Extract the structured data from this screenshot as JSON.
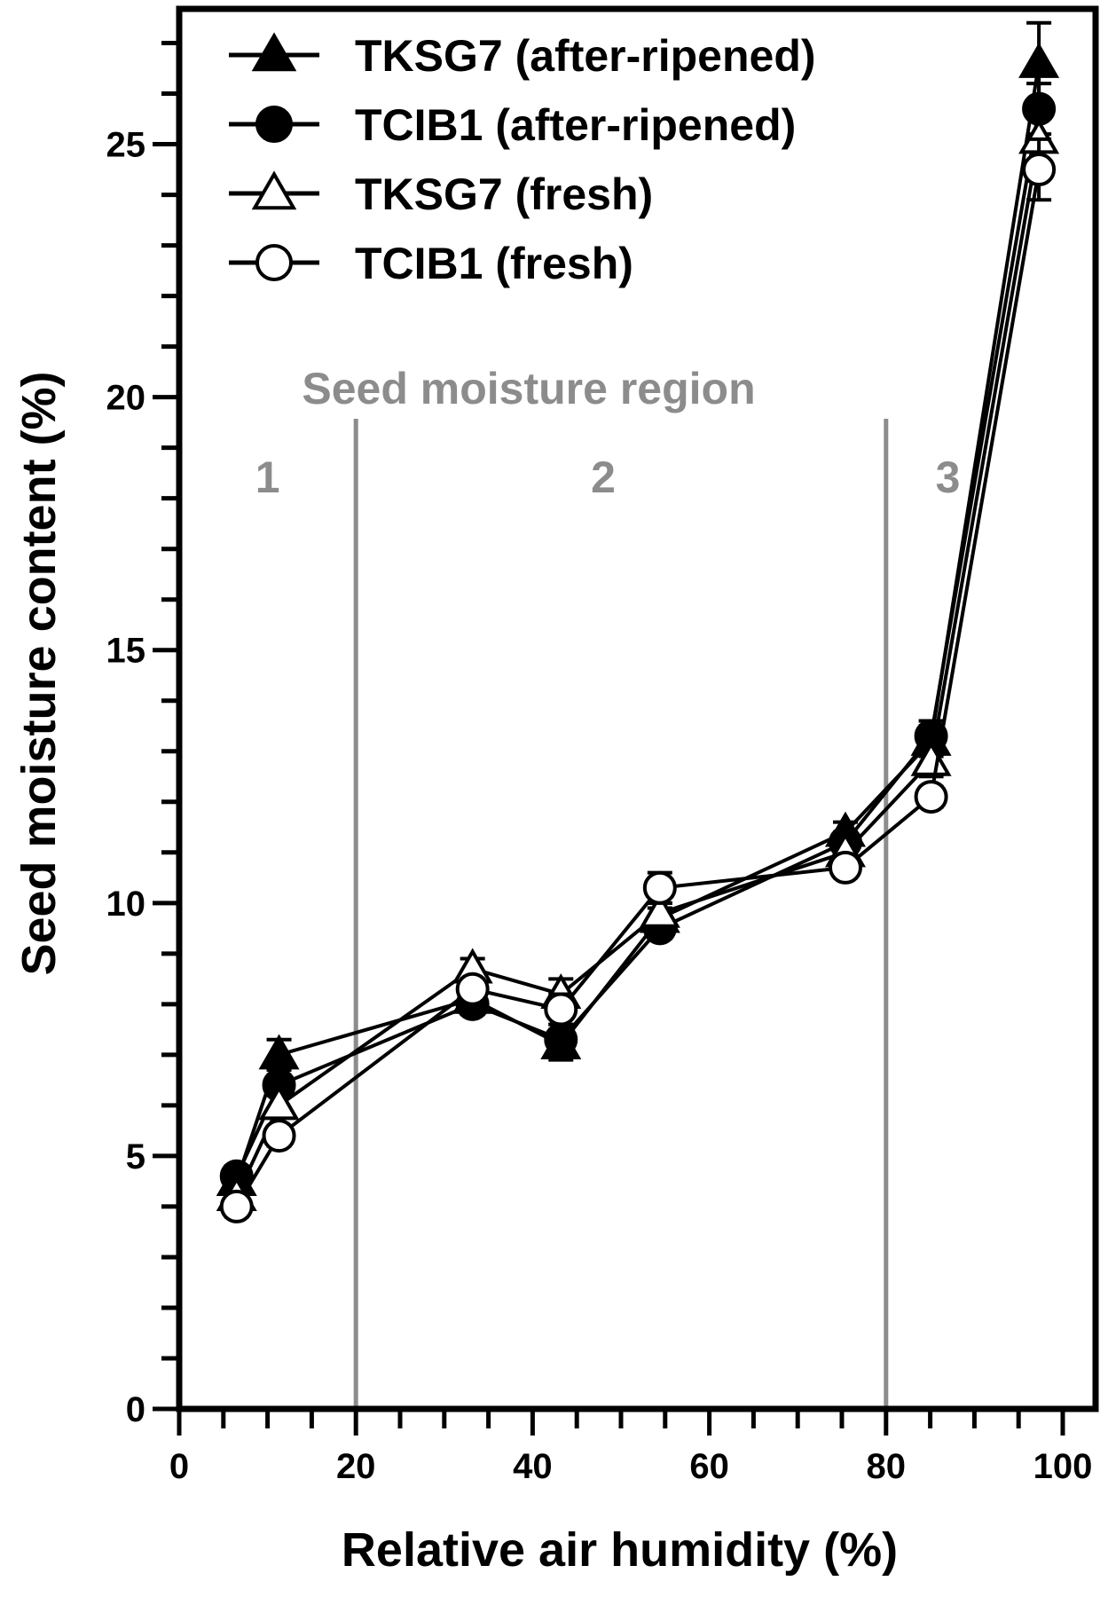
{
  "chart_data": {
    "type": "line",
    "xlabel": "Relative air humidity (%)",
    "ylabel": "Seed moisture content (%)",
    "xlim": [
      0,
      100
    ],
    "ylim": [
      0,
      27.5
    ],
    "x_ticks": [
      0,
      20,
      40,
      60,
      80,
      100
    ],
    "x_tick_labels": [
      "0",
      "20",
      "40",
      "60",
      "80",
      "100"
    ],
    "y_ticks": [
      0,
      5,
      10,
      15,
      20,
      25
    ],
    "y_tick_labels": [
      "0",
      "5",
      "10",
      "15",
      "20",
      "25"
    ],
    "grid": false,
    "legend_position": "top-left",
    "region_annotation": {
      "title": "Seed moisture region",
      "boundaries": [
        20,
        80
      ],
      "labels": [
        {
          "text": "1",
          "x": 10
        },
        {
          "text": "2",
          "x": 48
        },
        {
          "text": "3",
          "x": 87
        }
      ],
      "color": "#8c8c8c"
    },
    "series": [
      {
        "name": "TKSG7 (after-ripened)",
        "marker": "triangle",
        "filled": true,
        "x": [
          6.5,
          11.3,
          33.2,
          43.2,
          54.4,
          75.4,
          85.1,
          97.3
        ],
        "y": [
          4.5,
          7.0,
          8.1,
          7.2,
          9.7,
          11.4,
          13.2,
          26.6
        ],
        "err": [
          0.3,
          0.3,
          0.2,
          0.3,
          0.2,
          0.2,
          0.3,
          0.8
        ]
      },
      {
        "name": "TCIB1 (after-ripened)",
        "marker": "circle",
        "filled": true,
        "x": [
          6.5,
          11.3,
          33.2,
          43.2,
          54.4,
          75.4,
          85.1,
          97.3
        ],
        "y": [
          4.6,
          6.4,
          8.0,
          7.3,
          9.5,
          11.2,
          13.3,
          25.7
        ],
        "err": [
          0.2,
          0.2,
          0.2,
          0.3,
          0.2,
          0.2,
          0.3,
          0.5
        ]
      },
      {
        "name": "TKSG7 (fresh)",
        "marker": "triangle",
        "filled": false,
        "x": [
          6.5,
          11.3,
          33.2,
          43.2,
          54.4,
          75.4,
          85.1,
          97.3
        ],
        "y": [
          4.2,
          6.0,
          8.7,
          8.2,
          9.8,
          11.0,
          12.8,
          25.1
        ],
        "err": [
          0.2,
          0.2,
          0.2,
          0.3,
          0.2,
          0.2,
          0.3,
          0.6
        ]
      },
      {
        "name": "TCIB1 (fresh)",
        "marker": "circle",
        "filled": false,
        "x": [
          6.5,
          11.3,
          33.2,
          43.2,
          54.4,
          75.4,
          85.1,
          97.3
        ],
        "y": [
          4.0,
          5.4,
          8.3,
          7.9,
          10.3,
          10.7,
          12.1,
          24.5
        ],
        "err": [
          0.2,
          0.2,
          0.2,
          0.3,
          0.3,
          0.2,
          0.2,
          0.6
        ]
      }
    ]
  }
}
